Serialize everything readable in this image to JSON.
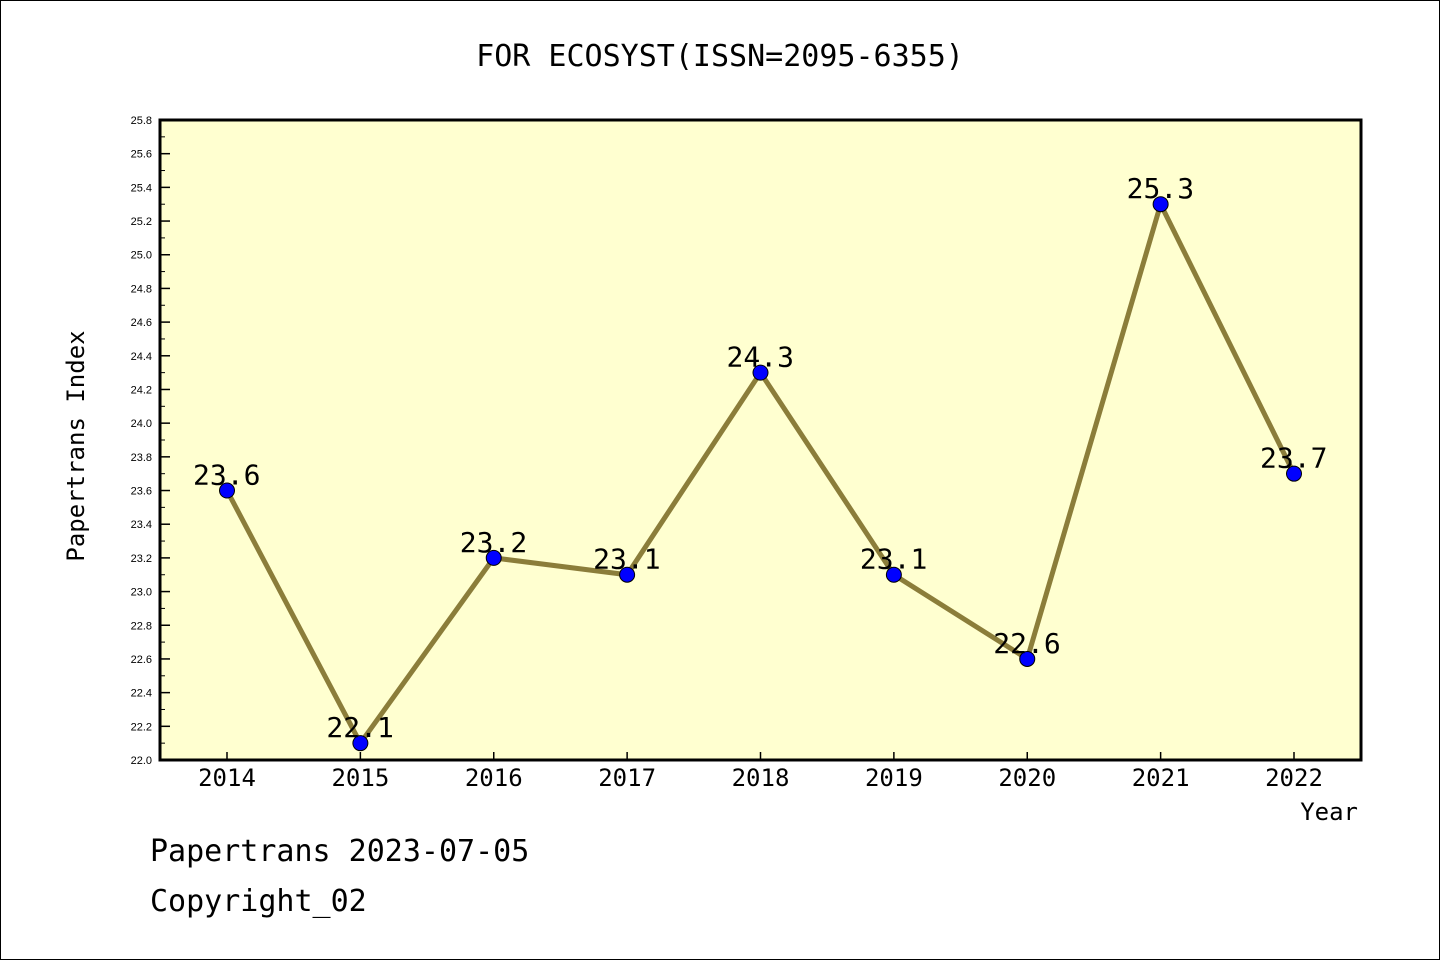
{
  "chart_data": {
    "type": "line",
    "title": "FOR ECOSYST(ISSN=2095-6355)",
    "xlabel": "Year",
    "ylabel": "Papertrans Index",
    "categories": [
      "2014",
      "2015",
      "2016",
      "2017",
      "2018",
      "2019",
      "2020",
      "2021",
      "2022"
    ],
    "series": [
      {
        "values": [
          23.6,
          22.1,
          23.2,
          23.1,
          24.3,
          23.1,
          22.6,
          25.3,
          23.7
        ],
        "labels": [
          "23.6",
          "22.1",
          "23.2",
          "23.1",
          "24.3",
          "23.1",
          "22.6",
          "25.3",
          "23.7"
        ]
      }
    ],
    "ylim": [
      22.0,
      25.8
    ],
    "yticks": [
      "22.0",
      "22.2",
      "22.4",
      "22.6",
      "22.8",
      "23.0",
      "23.2",
      "23.4",
      "23.6",
      "23.8",
      "24.0",
      "24.2",
      "24.4",
      "24.6",
      "24.8",
      "25.0",
      "25.2",
      "25.4",
      "25.6",
      "25.8"
    ],
    "grid": false,
    "colors": {
      "plot_background": "#ffffd0",
      "line": "#8b7d3a",
      "marker": "#0000ff"
    }
  },
  "footer": {
    "line1": "Papertrans 2023-07-05",
    "line2": "Copyright_02"
  }
}
